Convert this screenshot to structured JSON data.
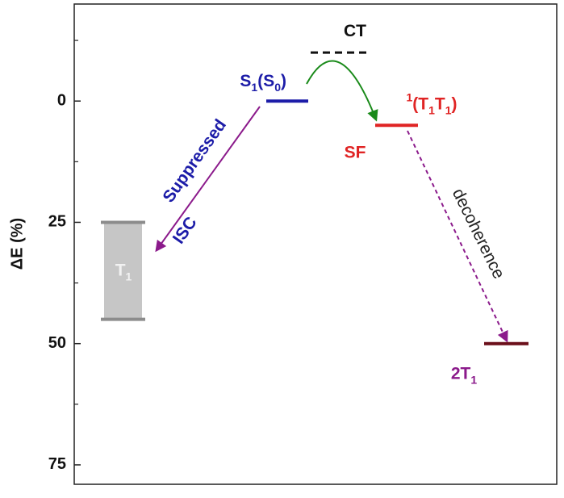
{
  "chart_data": {
    "type": "energy-levels",
    "y_label": "ΔE (%)",
    "ylim": [
      -20,
      79
    ],
    "inverted": true,
    "yticks": [
      0,
      25,
      50,
      75
    ],
    "minor_yticks": [
      -12.5,
      12.5,
      37.5,
      62.5
    ],
    "levels": [
      {
        "label": [
          {
            "text": "S"
          },
          {
            "text": "1",
            "shift": "sub"
          },
          {
            "text": "(S"
          },
          {
            "text": "0",
            "shift": "sub"
          },
          {
            "text": ")"
          }
        ],
        "value": 0,
        "color": "#1c1ca8",
        "style": "solid"
      },
      {
        "label": [
          {
            "text": "CT"
          }
        ],
        "value": -10,
        "color": "#111111",
        "style": "dashed"
      },
      {
        "label": [
          {
            "text": "1",
            "shift": "super"
          },
          {
            "text": "(T"
          },
          {
            "text": "1",
            "shift": "sub"
          },
          {
            "text": "T"
          },
          {
            "text": "1",
            "shift": "sub"
          },
          {
            "text": ")"
          }
        ],
        "value": 5,
        "color": "#e02424",
        "style": "solid"
      },
      {
        "label": [
          {
            "text": "2T"
          },
          {
            "text": "1",
            "shift": "sub"
          }
        ],
        "value": 50,
        "color": "#6b0f1a",
        "style": "solid"
      },
      {
        "label": [
          {
            "text": "T"
          },
          {
            "text": "1",
            "shift": "sub"
          }
        ],
        "values": [
          25,
          45
        ],
        "color": "#8c8c8c",
        "fill": "#c6c6c6",
        "style": "band"
      }
    ],
    "annotations": [
      "Suppressed",
      "ISC",
      "SF",
      "decoherence"
    ]
  }
}
